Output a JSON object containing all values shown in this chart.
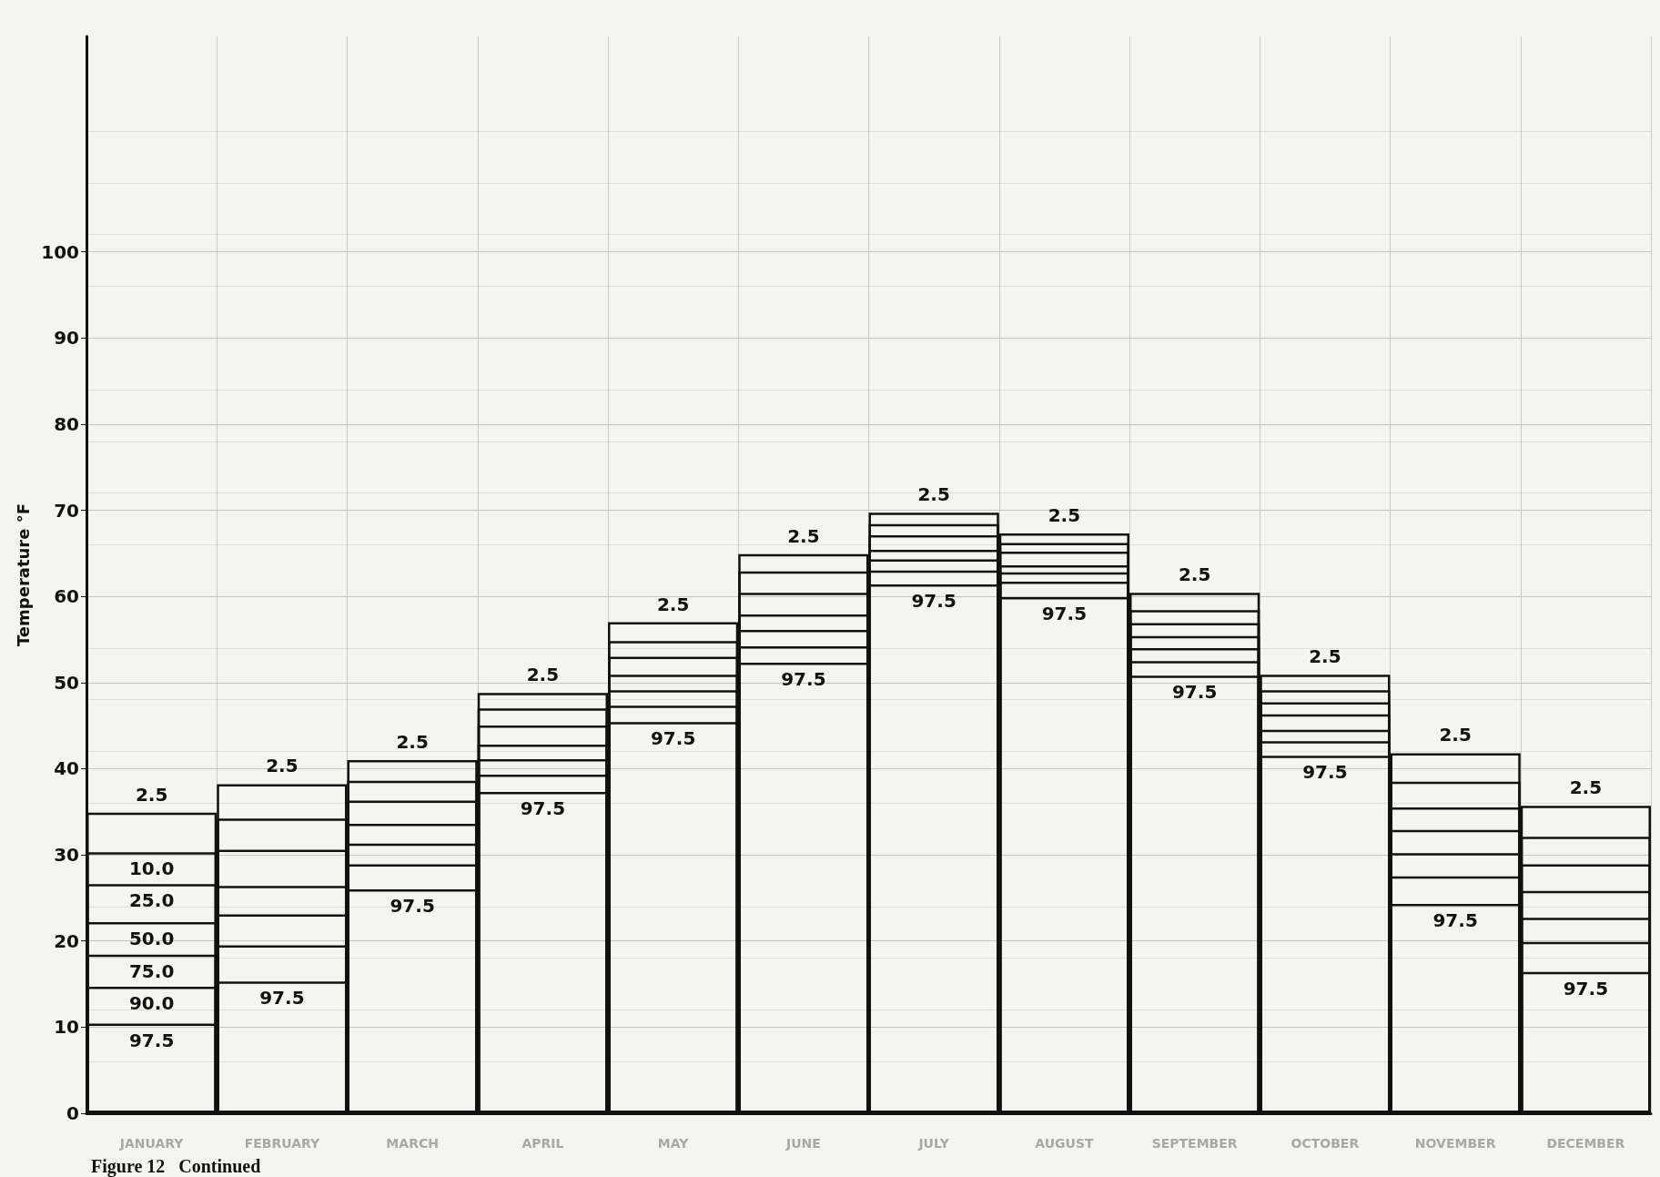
{
  "chart_data": {
    "type": "bar",
    "ylabel": "Temperature °F",
    "categories": [
      "JANUARY",
      "FEBRUARY",
      "MARCH",
      "APRIL",
      "MAY",
      "JUNE",
      "JULY",
      "AUGUST",
      "SEPTEMBER",
      "OCTOBER",
      "NOVEMBER",
      "DECEMBER"
    ],
    "series": [
      {
        "color": "#111111",
        "values": [
          34.9,
          38.2,
          41.0,
          48.8,
          57.0,
          64.9,
          69.7,
          67.3,
          60.4,
          50.9,
          41.8,
          35.7
        ]
      },
      {
        "color": "#111111",
        "values": [
          30.3,
          34.2,
          38.6,
          47.0,
          54.8,
          62.9,
          68.4,
          66.2,
          58.4,
          49.1,
          38.5,
          32.1
        ]
      },
      {
        "color": "#111111",
        "values": [
          26.6,
          30.6,
          36.3,
          45.0,
          53.0,
          60.4,
          67.1,
          65.2,
          56.9,
          47.7,
          35.5,
          28.9
        ]
      },
      {
        "color": "#111111",
        "values": [
          22.2,
          26.4,
          33.6,
          42.8,
          50.9,
          57.9,
          65.4,
          63.6,
          55.4,
          46.3,
          32.9,
          25.8
        ]
      },
      {
        "color": "#111111",
        "values": [
          18.4,
          23.1,
          31.3,
          41.1,
          49.1,
          56.1,
          64.3,
          62.8,
          54.0,
          44.5,
          30.2,
          22.7
        ]
      },
      {
        "color": "#111111",
        "values": [
          14.7,
          19.5,
          28.9,
          39.3,
          47.3,
          54.2,
          63.0,
          61.7,
          52.5,
          43.2,
          27.5,
          19.9
        ]
      },
      {
        "color": "#111111",
        "values": [
          10.4,
          15.3,
          26.0,
          37.3,
          45.4,
          52.3,
          61.4,
          59.9,
          50.8,
          41.5,
          24.3,
          16.4
        ]
      }
    ],
    "ylim": [
      0,
      125
    ],
    "yticks": [
      0,
      10,
      20,
      30,
      40,
      50,
      60,
      70,
      80,
      90,
      100
    ],
    "grid": true,
    "annotations": [
      {
        "text": "2.5",
        "x": "JANUARY",
        "y": 34.9
      },
      {
        "text": "10.0",
        "x": "JANUARY",
        "y": 30.3
      },
      {
        "text": "25.0",
        "x": "JANUARY",
        "y": 26.6
      },
      {
        "text": "50.0",
        "x": "JANUARY",
        "y": 22.2
      },
      {
        "text": "75.0",
        "x": "JANUARY",
        "y": 18.4
      },
      {
        "text": "90.0",
        "x": "JANUARY",
        "y": 14.7
      },
      {
        "text": "97.5",
        "x": "JANUARY",
        "y": 10.4
      },
      {
        "text": "2.5",
        "x": "FEBRUARY",
        "y": 38.2
      },
      {
        "text": "97.5",
        "x": "FEBRUARY",
        "y": 15.3
      },
      {
        "text": "2.5",
        "x": "MARCH",
        "y": 41.0
      },
      {
        "text": "97.5",
        "x": "MARCH",
        "y": 26.0
      },
      {
        "text": "2.5",
        "x": "APRIL",
        "y": 48.8
      },
      {
        "text": "97.5",
        "x": "APRIL",
        "y": 37.3
      },
      {
        "text": "2.5",
        "x": "MAY",
        "y": 57.0
      },
      {
        "text": "97.5",
        "x": "MAY",
        "y": 45.4
      },
      {
        "text": "2.5",
        "x": "JUNE",
        "y": 64.9
      },
      {
        "text": "97.5",
        "x": "JUNE",
        "y": 52.3
      },
      {
        "text": "2.5",
        "x": "JULY",
        "y": 69.7
      },
      {
        "text": "97.5",
        "x": "JULY",
        "y": 61.4
      },
      {
        "text": "2.5",
        "x": "AUGUST",
        "y": 67.3
      },
      {
        "text": "97.5",
        "x": "AUGUST",
        "y": 59.9
      },
      {
        "text": "2.5",
        "x": "SEPTEMBER",
        "y": 60.4
      },
      {
        "text": "97.5",
        "x": "SEPTEMBER",
        "y": 50.8
      },
      {
        "text": "2.5",
        "x": "OCTOBER",
        "y": 50.9
      },
      {
        "text": "97.5",
        "x": "OCTOBER",
        "y": 41.5
      },
      {
        "text": "2.5",
        "x": "NOVEMBER",
        "y": 41.8
      },
      {
        "text": "97.5",
        "x": "NOVEMBER",
        "y": 24.3
      },
      {
        "text": "2.5",
        "x": "DECEMBER",
        "y": 35.7
      },
      {
        "text": "97.5",
        "x": "DECEMBER",
        "y": 16.4
      },
      "Figure 12   Continued"
    ]
  }
}
